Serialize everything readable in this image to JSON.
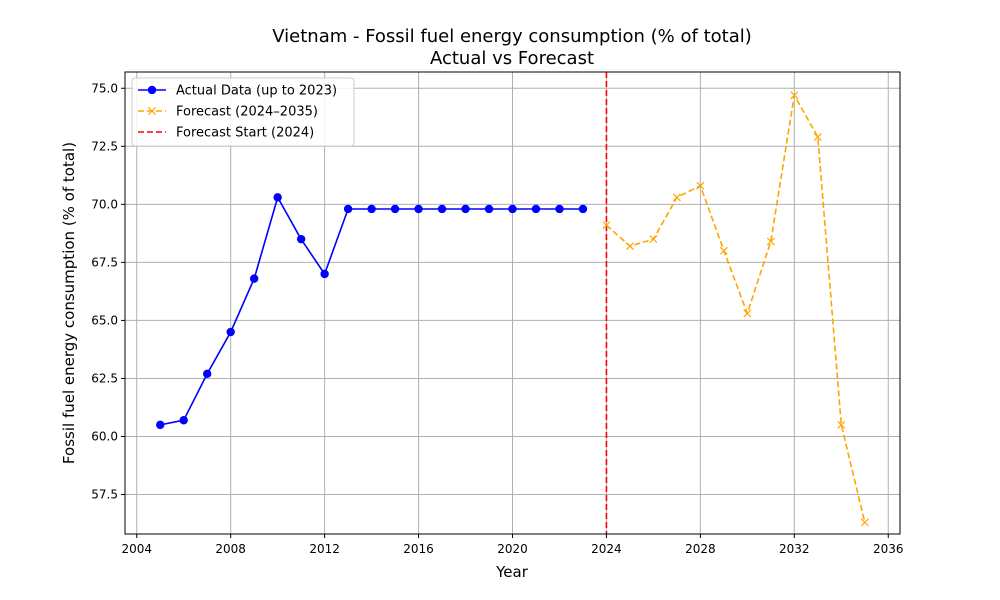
{
  "chart_data": {
    "type": "line",
    "title": "Vietnam - Fossil fuel energy consumption (% of total)",
    "subtitle": "Actual vs Forecast",
    "xlabel": "Year",
    "ylabel": "Fossil fuel energy consumption (% of total)",
    "xlim": [
      2003.5,
      2036.5
    ],
    "ylim": [
      55.8,
      75.7
    ],
    "x_ticks": [
      2004,
      2008,
      2012,
      2016,
      2020,
      2024,
      2028,
      2032,
      2036
    ],
    "y_ticks": [
      57.5,
      60.0,
      62.5,
      65.0,
      67.5,
      70.0,
      72.5,
      75.0
    ],
    "grid": true,
    "legend_position": "top-left",
    "series": [
      {
        "name": "Actual Data (up to 2023)",
        "color": "#0000ff",
        "line_style": "solid",
        "marker": "circle",
        "x": [
          2005,
          2006,
          2007,
          2008,
          2009,
          2010,
          2011,
          2012,
          2013,
          2014,
          2015,
          2016,
          2017,
          2018,
          2019,
          2020,
          2021,
          2022,
          2023
        ],
        "y": [
          60.5,
          60.7,
          62.7,
          64.5,
          66.8,
          70.3,
          68.5,
          67.0,
          69.8,
          69.8,
          69.8,
          69.8,
          69.8,
          69.8,
          69.8,
          69.8,
          69.8,
          69.8,
          69.8
        ]
      },
      {
        "name": "Forecast (2024–2035)",
        "color": "#ffa500",
        "line_style": "dashed",
        "marker": "x",
        "x": [
          2024,
          2025,
          2026,
          2027,
          2028,
          2029,
          2030,
          2031,
          2032,
          2033,
          2034,
          2035
        ],
        "y": [
          69.1,
          68.2,
          68.5,
          70.3,
          70.8,
          68.0,
          65.3,
          68.4,
          74.7,
          72.9,
          60.5,
          56.3
        ]
      }
    ],
    "vline": {
      "name": "Forecast Start (2024)",
      "x": 2024,
      "color": "#ff0000",
      "line_style": "dashed"
    }
  }
}
